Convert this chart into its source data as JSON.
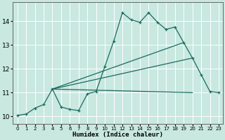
{
  "xlabel": "Humidex (Indice chaleur)",
  "xlim": [
    -0.5,
    23.5
  ],
  "ylim": [
    9.7,
    14.8
  ],
  "xticks": [
    0,
    1,
    2,
    3,
    4,
    5,
    6,
    7,
    8,
    9,
    10,
    11,
    12,
    13,
    14,
    15,
    16,
    17,
    18,
    19,
    20,
    21,
    22,
    23
  ],
  "yticks": [
    10,
    11,
    12,
    13,
    14
  ],
  "bg_color": "#c8e8e0",
  "line_color": "#1a6b60",
  "grid_color": "#ffffff",
  "line1_x": [
    0,
    1,
    2,
    3,
    4,
    5,
    6,
    7,
    8,
    9,
    10,
    11,
    12,
    13,
    14,
    15,
    16,
    17,
    18,
    19,
    20,
    21,
    22,
    23
  ],
  "line1_y": [
    10.05,
    10.1,
    10.35,
    10.5,
    11.15,
    10.4,
    10.3,
    10.25,
    10.95,
    11.05,
    12.1,
    13.15,
    14.35,
    14.05,
    13.95,
    14.35,
    13.95,
    13.65,
    13.75,
    13.1,
    12.45,
    11.75,
    11.05,
    11.0
  ],
  "line2_x": [
    4,
    20
  ],
  "line2_y": [
    11.15,
    11.0
  ],
  "line3_x": [
    4,
    19
  ],
  "line3_y": [
    11.15,
    13.1
  ],
  "line4_x": [
    4,
    20
  ],
  "line4_y": [
    11.15,
    12.45
  ]
}
